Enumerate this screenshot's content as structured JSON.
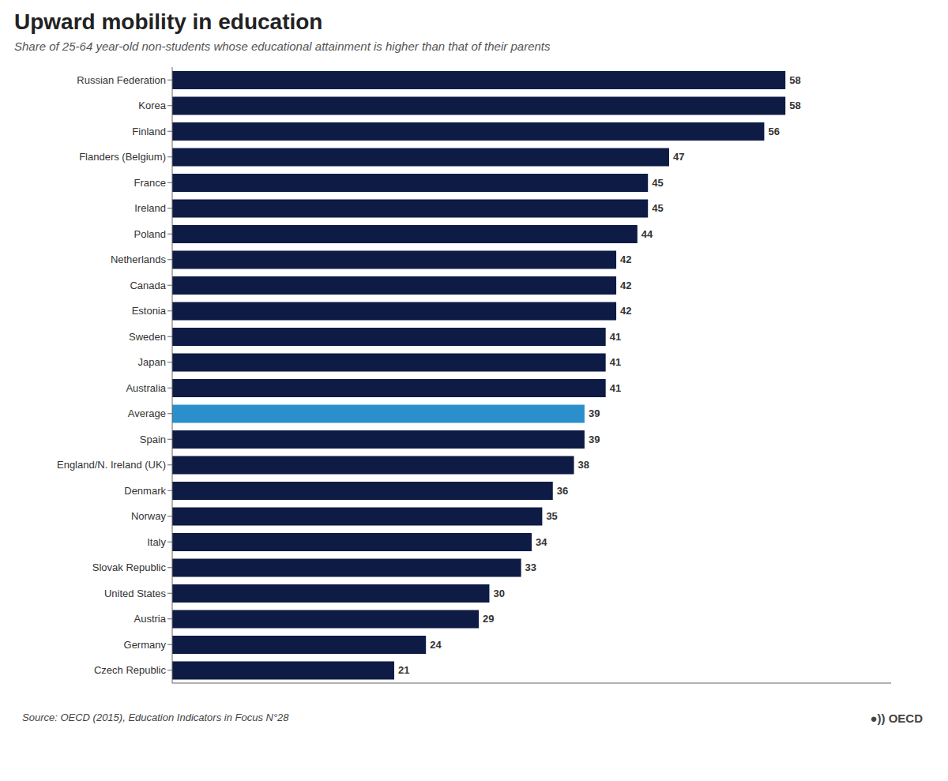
{
  "chart_data": {
    "type": "bar",
    "orientation": "horizontal",
    "title": "Upward mobility in education",
    "subtitle": "Share of 25-64 year-old non-students whose educational attainment is higher than that of their parents",
    "annotations": [
      "Source: OECD (2015), Education Indicators in Focus N°28",
      "●)) OECD"
    ],
    "categories": [
      "Russian Federation",
      "Korea",
      "Finland",
      "Flanders (Belgium)",
      "France",
      "Ireland",
      "Poland",
      "Netherlands",
      "Canada",
      "Estonia",
      "Sweden",
      "Japan",
      "Australia",
      "Average",
      "Spain",
      "England/N. Ireland (UK)",
      "Denmark",
      "Norway",
      "Italy",
      "Slovak Republic",
      "United States",
      "Austria",
      "Germany",
      "Czech Republic"
    ],
    "values": [
      58,
      58,
      56,
      47,
      45,
      45,
      44,
      42,
      42,
      42,
      41,
      41,
      41,
      39,
      39,
      38,
      36,
      35,
      34,
      33,
      30,
      29,
      24,
      21
    ],
    "colors": [
      "#0d1b45",
      "#0d1b45",
      "#0d1b45",
      "#0d1b45",
      "#0d1b45",
      "#0d1b45",
      "#0d1b45",
      "#0d1b45",
      "#0d1b45",
      "#0d1b45",
      "#0d1b45",
      "#0d1b45",
      "#0d1b45",
      "#2b8fcb",
      "#0d1b45",
      "#0d1b45",
      "#0d1b45",
      "#0d1b45",
      "#0d1b45",
      "#0d1b45",
      "#0d1b45",
      "#0d1b45",
      "#0d1b45",
      "#0d1b45"
    ],
    "xlim": [
      0,
      68
    ],
    "data_labels": true,
    "tick_labels": "y"
  }
}
